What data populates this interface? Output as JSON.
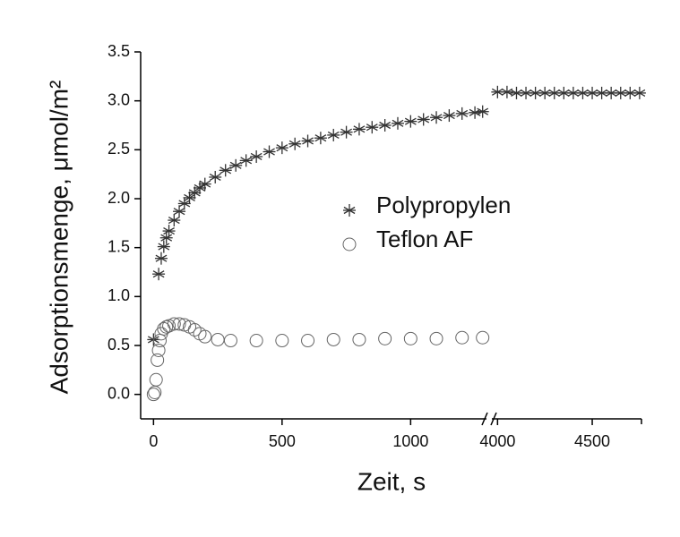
{
  "chart_data": {
    "type": "scatter",
    "x_label": "Zeit, s",
    "y_label": "Adsorptionsmenge, μmol/m²",
    "xlim": [
      -50,
      4760
    ],
    "axis_break": [
      1295,
      3970
    ],
    "xticks": [
      0,
      500,
      1000,
      4000,
      4500
    ],
    "ylim": [
      -0.25,
      3.5
    ],
    "yticks": [
      {
        "value": 0,
        "label": "0.0"
      },
      0.5,
      {
        "value": 1,
        "label": "1.0"
      },
      1.5,
      {
        "value": 2,
        "label": "2.0"
      },
      2.5,
      {
        "value": 3,
        "label": "3.0"
      },
      3.5
    ],
    "grid": false,
    "legend": "center",
    "series": [
      {
        "name": "Polypropylen",
        "color": "#333333",
        "marker": "asterisk",
        "x": [
          0,
          20,
          30,
          40,
          50,
          60,
          80,
          100,
          120,
          140,
          160,
          180,
          200,
          240,
          280,
          320,
          360,
          400,
          450,
          500,
          550,
          600,
          650,
          700,
          750,
          800,
          850,
          900,
          950,
          1000,
          1050,
          1100,
          1150,
          1200,
          1250,
          1280,
          4000,
          4050,
          4100,
          4150,
          4200,
          4250,
          4300,
          4350,
          4400,
          4450,
          4500,
          4550,
          4600,
          4650,
          4700,
          4750
        ],
        "values": [
          0.56,
          1.23,
          1.39,
          1.51,
          1.6,
          1.67,
          1.78,
          1.87,
          1.95,
          2.01,
          2.06,
          2.11,
          2.15,
          2.22,
          2.29,
          2.34,
          2.39,
          2.43,
          2.48,
          2.52,
          2.56,
          2.59,
          2.62,
          2.65,
          2.68,
          2.71,
          2.73,
          2.75,
          2.77,
          2.79,
          2.81,
          2.83,
          2.85,
          2.87,
          2.88,
          2.89,
          3.09,
          3.09,
          3.08,
          3.08,
          3.08,
          3.08,
          3.08,
          3.08,
          3.08,
          3.08,
          3.08,
          3.08,
          3.08,
          3.08,
          3.08,
          3.08
        ]
      },
      {
        "name": "Teflon AF",
        "color": "#666666",
        "marker": "circle",
        "x": [
          0,
          5,
          10,
          15,
          20,
          25,
          30,
          40,
          50,
          60,
          80,
          100,
          120,
          140,
          160,
          180,
          200,
          250,
          300,
          400,
          500,
          600,
          700,
          800,
          900,
          1000,
          1100,
          1200,
          1280
        ],
        "values": [
          0.0,
          0.02,
          0.15,
          0.35,
          0.45,
          0.55,
          0.62,
          0.67,
          0.69,
          0.7,
          0.72,
          0.72,
          0.71,
          0.69,
          0.66,
          0.62,
          0.59,
          0.56,
          0.55,
          0.55,
          0.55,
          0.55,
          0.56,
          0.56,
          0.57,
          0.57,
          0.57,
          0.58,
          0.58
        ]
      }
    ]
  }
}
